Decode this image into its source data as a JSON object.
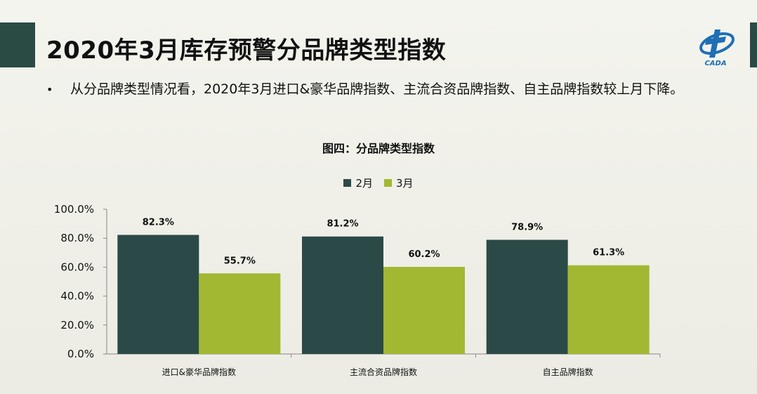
{
  "page": {
    "title": "2020年3月库存预警分品牌类型指数",
    "bullet_symbol": "•",
    "bullet_text": "从分品牌类型情况看，2020年3月进口&豪华品牌指数、主流合资品牌指数、自主品牌指数较上月下降。"
  },
  "logo": {
    "icon": "cada-logo-icon",
    "text": "CADA"
  },
  "colors": {
    "series_feb": "#2b4a47",
    "series_mar": "#a2b832",
    "title_bar": "#2a4a44"
  },
  "chart_data": {
    "type": "bar",
    "title": "图四：分品牌类型指数",
    "categories": [
      "进口&豪华品牌指数",
      "主流合资品牌指数",
      "自主品牌指数"
    ],
    "series": [
      {
        "name": "2月",
        "values": [
          82.3,
          81.2,
          78.9
        ],
        "labels": [
          "82.3%",
          "81.2%",
          "78.9%"
        ]
      },
      {
        "name": "3月",
        "values": [
          55.7,
          60.2,
          61.3
        ],
        "labels": [
          "55.7%",
          "60.2%",
          "61.3%"
        ]
      }
    ],
    "ylim": [
      0,
      100
    ],
    "yticks": [
      "0.0%",
      "20.0%",
      "40.0%",
      "60.0%",
      "80.0%",
      "100.0%"
    ],
    "legend": "top-center",
    "grid": false
  }
}
